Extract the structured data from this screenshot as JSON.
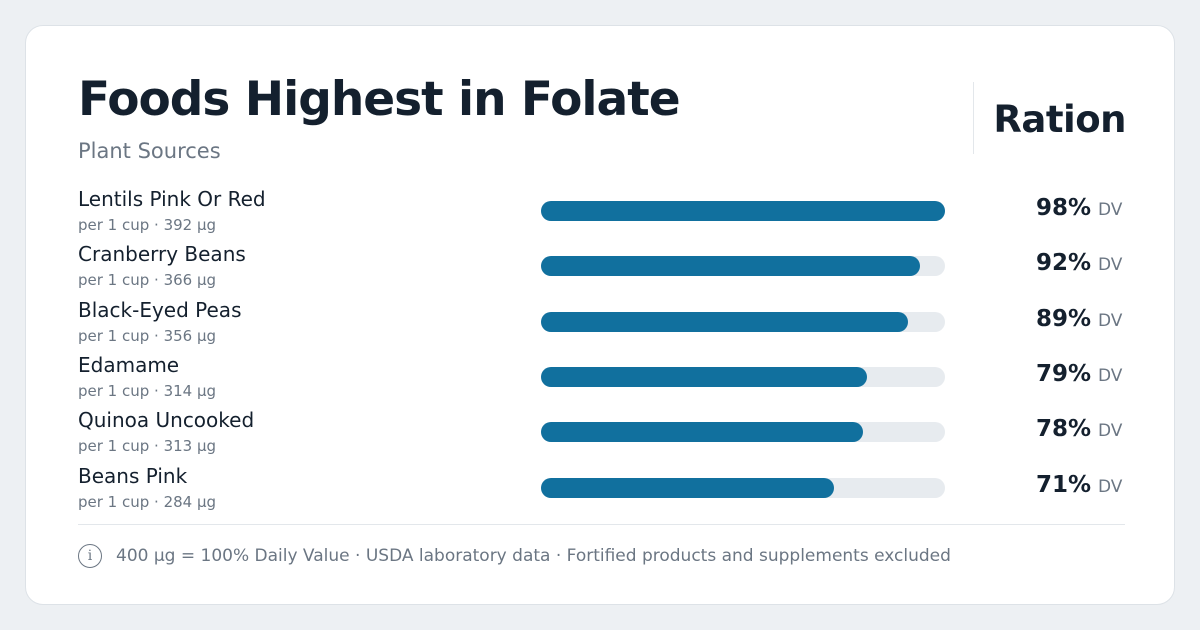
{
  "brand": "Ration",
  "chart_data": {
    "type": "bar",
    "orientation": "horizontal",
    "title": "Foods Highest in Folate",
    "subtitle": "Plant Sources",
    "categories": [
      "Lentils Pink Or Red",
      "Cranberry Beans",
      "Black-Eyed Peas",
      "Edamame",
      "Quinoa Uncooked",
      "Beans Pink"
    ],
    "details": [
      "per 1 cup · 392 µg",
      "per 1 cup · 366 µg",
      "per 1 cup · 356 µg",
      "per 1 cup · 314 µg",
      "per 1 cup · 313 µg",
      "per 1 cup · 284 µg"
    ],
    "values": [
      98,
      92,
      89,
      79,
      78,
      71
    ],
    "value_labels": [
      "98%",
      "92%",
      "89%",
      "79%",
      "78%",
      "71%"
    ],
    "unit_label": "DV",
    "xlim": [
      0,
      98
    ],
    "color": "#11709e",
    "track_color": "#e7ebef",
    "footnote": "400 µg = 100% Daily Value · USDA laboratory data · Fortified products and supplements excluded"
  }
}
